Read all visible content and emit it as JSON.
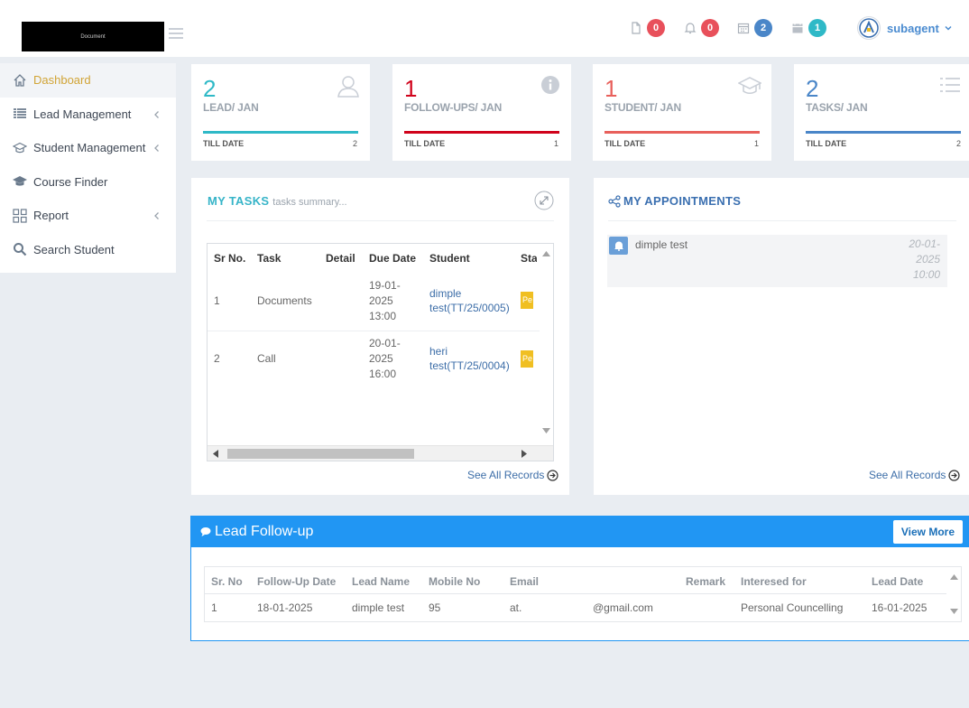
{
  "header": {
    "logo_text": "Document",
    "badges": [
      {
        "icon": "document-icon",
        "count": "0",
        "color": "#e8505b"
      },
      {
        "icon": "bell-icon",
        "count": "0",
        "color": "#e8505b"
      },
      {
        "icon": "calendar-list-icon",
        "count": "2",
        "color": "#4a86c8"
      },
      {
        "icon": "calendar-icon",
        "count": "1",
        "color": "#2fb9c7"
      }
    ],
    "user_name": "subagent"
  },
  "sidebar": {
    "items": [
      {
        "label": "Dashboard",
        "icon": "home-icon",
        "active": true
      },
      {
        "label": "Lead Management",
        "icon": "list-icon",
        "expandable": true
      },
      {
        "label": "Student Management",
        "icon": "graduation-cap-icon",
        "expandable": true
      },
      {
        "label": "Course Finder",
        "icon": "mortarboard-icon"
      },
      {
        "label": "Report",
        "icon": "grid-icon",
        "expandable": true
      },
      {
        "label": "Search Student",
        "icon": "search-icon"
      }
    ]
  },
  "stats": [
    {
      "value": "2",
      "label": "LEAD/ JAN",
      "till_label": "TILL DATE",
      "till_value": "2",
      "color": "#2fb9c7",
      "icon": "user-icon"
    },
    {
      "value": "1",
      "label": "FOLLOW-UPS/ JAN",
      "till_label": "TILL DATE",
      "till_value": "1",
      "color": "#d0021b",
      "icon": "info-icon"
    },
    {
      "value": "1",
      "label": "STUDENT/ JAN",
      "till_label": "TILL DATE",
      "till_value": "1",
      "color": "#e8605b",
      "icon": "graduation-cap-icon"
    },
    {
      "value": "2",
      "label": "TASKS/ JAN",
      "till_label": "TILL DATE",
      "till_value": "2",
      "color": "#4a86c8",
      "icon": "list-icon"
    }
  ],
  "tasks": {
    "title": "MY TASKS",
    "subtitle": "tasks summary...",
    "columns": [
      "Sr No.",
      "Task",
      "Detail",
      "Due Date",
      "Student",
      "Sta"
    ],
    "rows": [
      {
        "sr": "1",
        "task": "Documents",
        "detail": "",
        "due_date": "19-01-2025 13:00",
        "due_lines": [
          "19-01-",
          "2025",
          "13:00"
        ],
        "student_lines": [
          "dimple",
          "test(TT/25/0005)"
        ],
        "status": "Pe"
      },
      {
        "sr": "2",
        "task": "Call",
        "detail": "",
        "due_date": "20-01-2025 16:00",
        "due_lines": [
          "20-01-",
          "2025",
          "16:00"
        ],
        "student_lines": [
          "heri",
          "test(TT/25/0004)"
        ],
        "status": "Pe"
      }
    ],
    "see_all": "See All Records"
  },
  "appointments": {
    "title": "MY APPOINTMENTS",
    "items": [
      {
        "name": "dimple test",
        "date_lines": [
          "20-01-",
          "2025",
          "10:00"
        ]
      }
    ],
    "see_all": "See All Records"
  },
  "lead_followup": {
    "title": "Lead Follow-up",
    "view_more": "View More",
    "columns": [
      "Sr. No",
      "Follow-Up Date",
      "Lead Name",
      "Mobile No",
      "Email",
      "Remark",
      "Interesed for",
      "Lead Date"
    ],
    "rows": [
      {
        "sr": "1",
        "followup_date": "18-01-2025",
        "lead_name": "dimple test",
        "mobile": "95",
        "email_start": "at.",
        "email_end": "@gmail.com",
        "remark": "",
        "interested_for": "Personal Councelling",
        "lead_date": "16-01-2025"
      }
    ]
  }
}
